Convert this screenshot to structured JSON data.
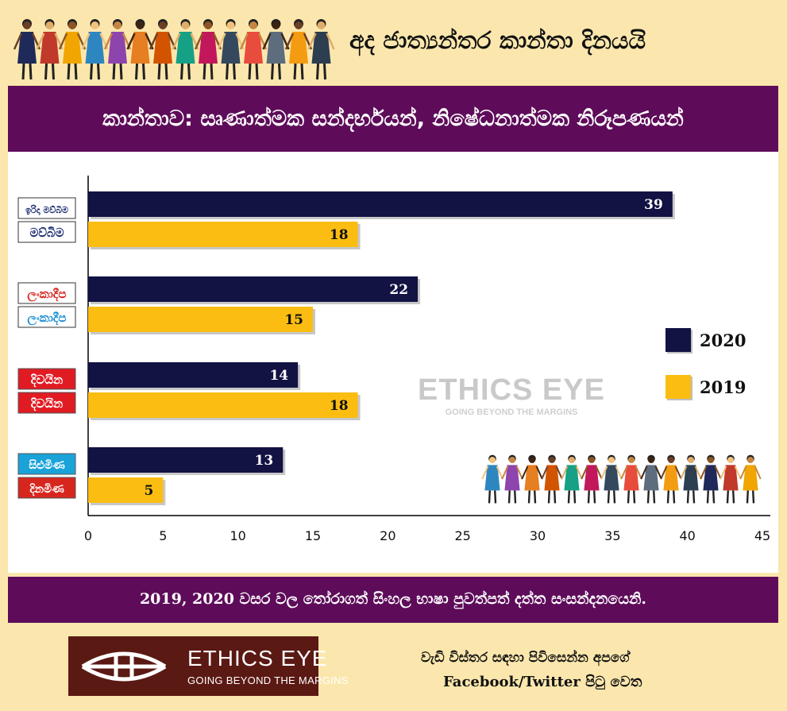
{
  "header": {
    "title": "අද ජාත්‍යන්තර කාන්තා දිනයයි",
    "subtitle": "කාන්තාව: සෘණාත්මක සන්දර්භයන්, නිෂේධනාත්මක නිරූපණයන්"
  },
  "chart_data": {
    "type": "bar",
    "orientation": "horizontal",
    "categories": [
      "ඉරිදා මව්බිම / මව්බිම",
      "ලංකාදීප",
      "දිවයින",
      "සිළුමිණ / දිනමිණ"
    ],
    "category_logos": [
      {
        "line1": "ඉරිදා මව්බිම",
        "line2": "මව්බිම",
        "color1": "#1b2d6e",
        "color2": "#1b2d6e",
        "style": "outline"
      },
      {
        "line1": "ලංකාදීප",
        "line2": "ලංකාදීප",
        "color1": "#d7261e",
        "color2": "#1e8fd5",
        "style": "outline"
      },
      {
        "line1": "දිවයින",
        "line2": "දිවයින",
        "color1": "#e11b22",
        "color2": "#e11b22",
        "style": "filled"
      },
      {
        "line1": "සිළුමිණ",
        "line2": "දිනමිණ",
        "color1": "#1aa3d9",
        "color2": "#d7261e",
        "style": "filled"
      }
    ],
    "series": [
      {
        "name": "2020",
        "color": "#121243",
        "values": [
          39,
          22,
          14,
          13
        ]
      },
      {
        "name": "2019",
        "color": "#fbbd12",
        "values": [
          18,
          15,
          18,
          5
        ]
      }
    ],
    "x_ticks": [
      0,
      5,
      10,
      15,
      20,
      25,
      30,
      35,
      40,
      45
    ],
    "xlim": [
      0,
      45
    ],
    "grid": false,
    "legend_position": "right",
    "watermark": {
      "title": "ETHICS EYE",
      "tagline": "GOING BEYOND THE MARGINS"
    }
  },
  "footer": {
    "note": "2019, 2020 වසර වල තෝරාගත් සිංහල භාෂා පුවත්පත් දත්ත සංසන්දනයෙනි.",
    "logo_title": "ETHICS EYE",
    "logo_tagline": "GOING BEYOND THE MARGINS",
    "cta_line1": "වැඩි විස්තර සඳහා පිවිසෙන්න අපගේ",
    "cta_line2": "Facebook/Twitter  පිටු වෙත"
  },
  "colors": {
    "background": "#fbe7ad",
    "purple": "#5e0c5a",
    "navy": "#121243",
    "gold": "#fbbd12",
    "logo_brown": "#5b1913"
  }
}
